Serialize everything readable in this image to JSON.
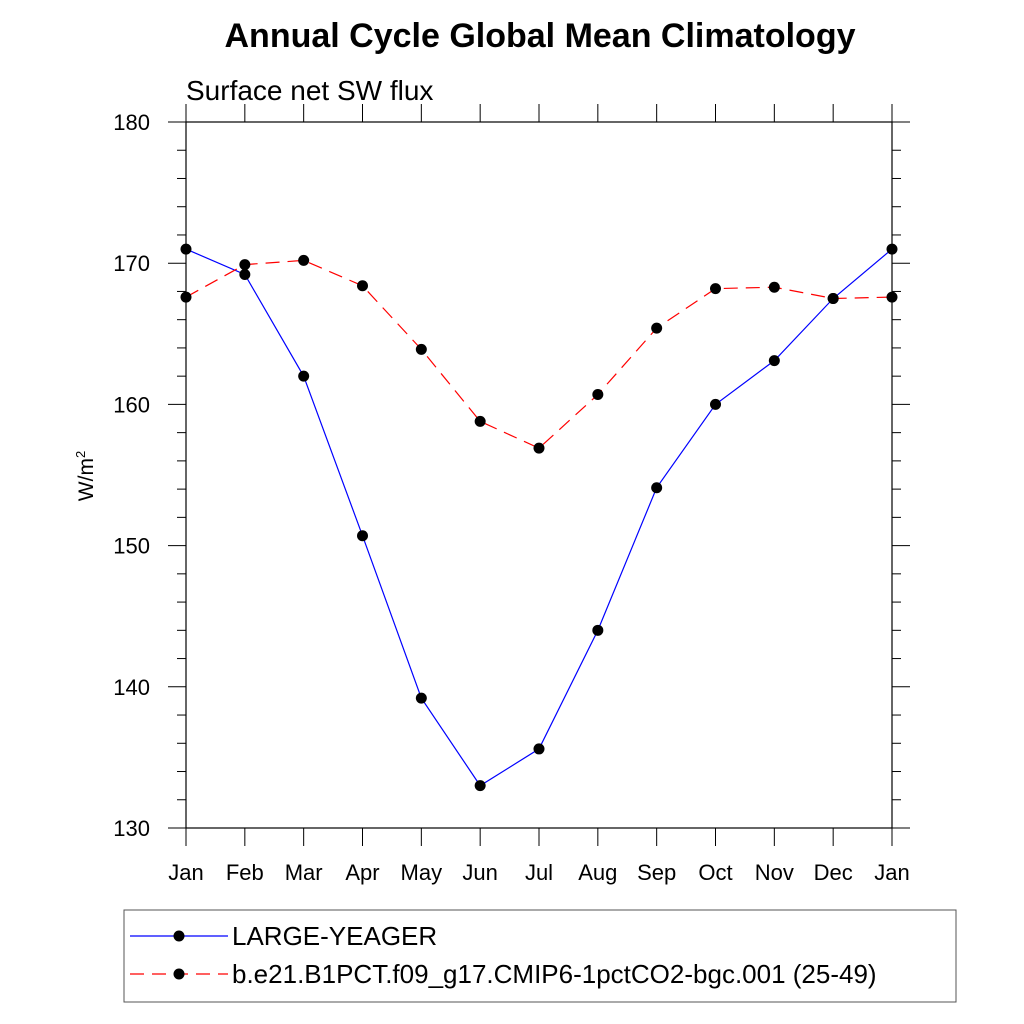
{
  "chart_data": {
    "type": "line",
    "title": "Annual Cycle Global Mean Climatology",
    "subtitle": "Surface net SW flux",
    "ylabel": "W/m",
    "ylabel_superscript": "2",
    "ylim": [
      130,
      180
    ],
    "yticks": [
      130,
      140,
      150,
      160,
      170,
      180
    ],
    "categories": [
      "Jan",
      "Feb",
      "Mar",
      "Apr",
      "May",
      "Jun",
      "Jul",
      "Aug",
      "Sep",
      "Oct",
      "Nov",
      "Dec",
      "Jan"
    ],
    "grid": false,
    "legend_position": "bottom",
    "series": [
      {
        "name": "LARGE-YEAGER",
        "color": "#0000ff",
        "line_style": "solid",
        "values": [
          171.0,
          169.2,
          162.0,
          150.7,
          139.2,
          133.0,
          135.6,
          144.0,
          154.1,
          160.0,
          163.1,
          167.5,
          171.0
        ]
      },
      {
        "name": "b.e21.B1PCT.f09_g17.CMIP6-1pctCO2-bgc.001 (25-49)",
        "color": "#ff0000",
        "line_style": "dashed",
        "values": [
          167.6,
          169.9,
          170.2,
          168.4,
          163.9,
          158.8,
          156.9,
          160.7,
          165.4,
          168.2,
          168.3,
          167.5,
          167.6
        ]
      }
    ]
  }
}
